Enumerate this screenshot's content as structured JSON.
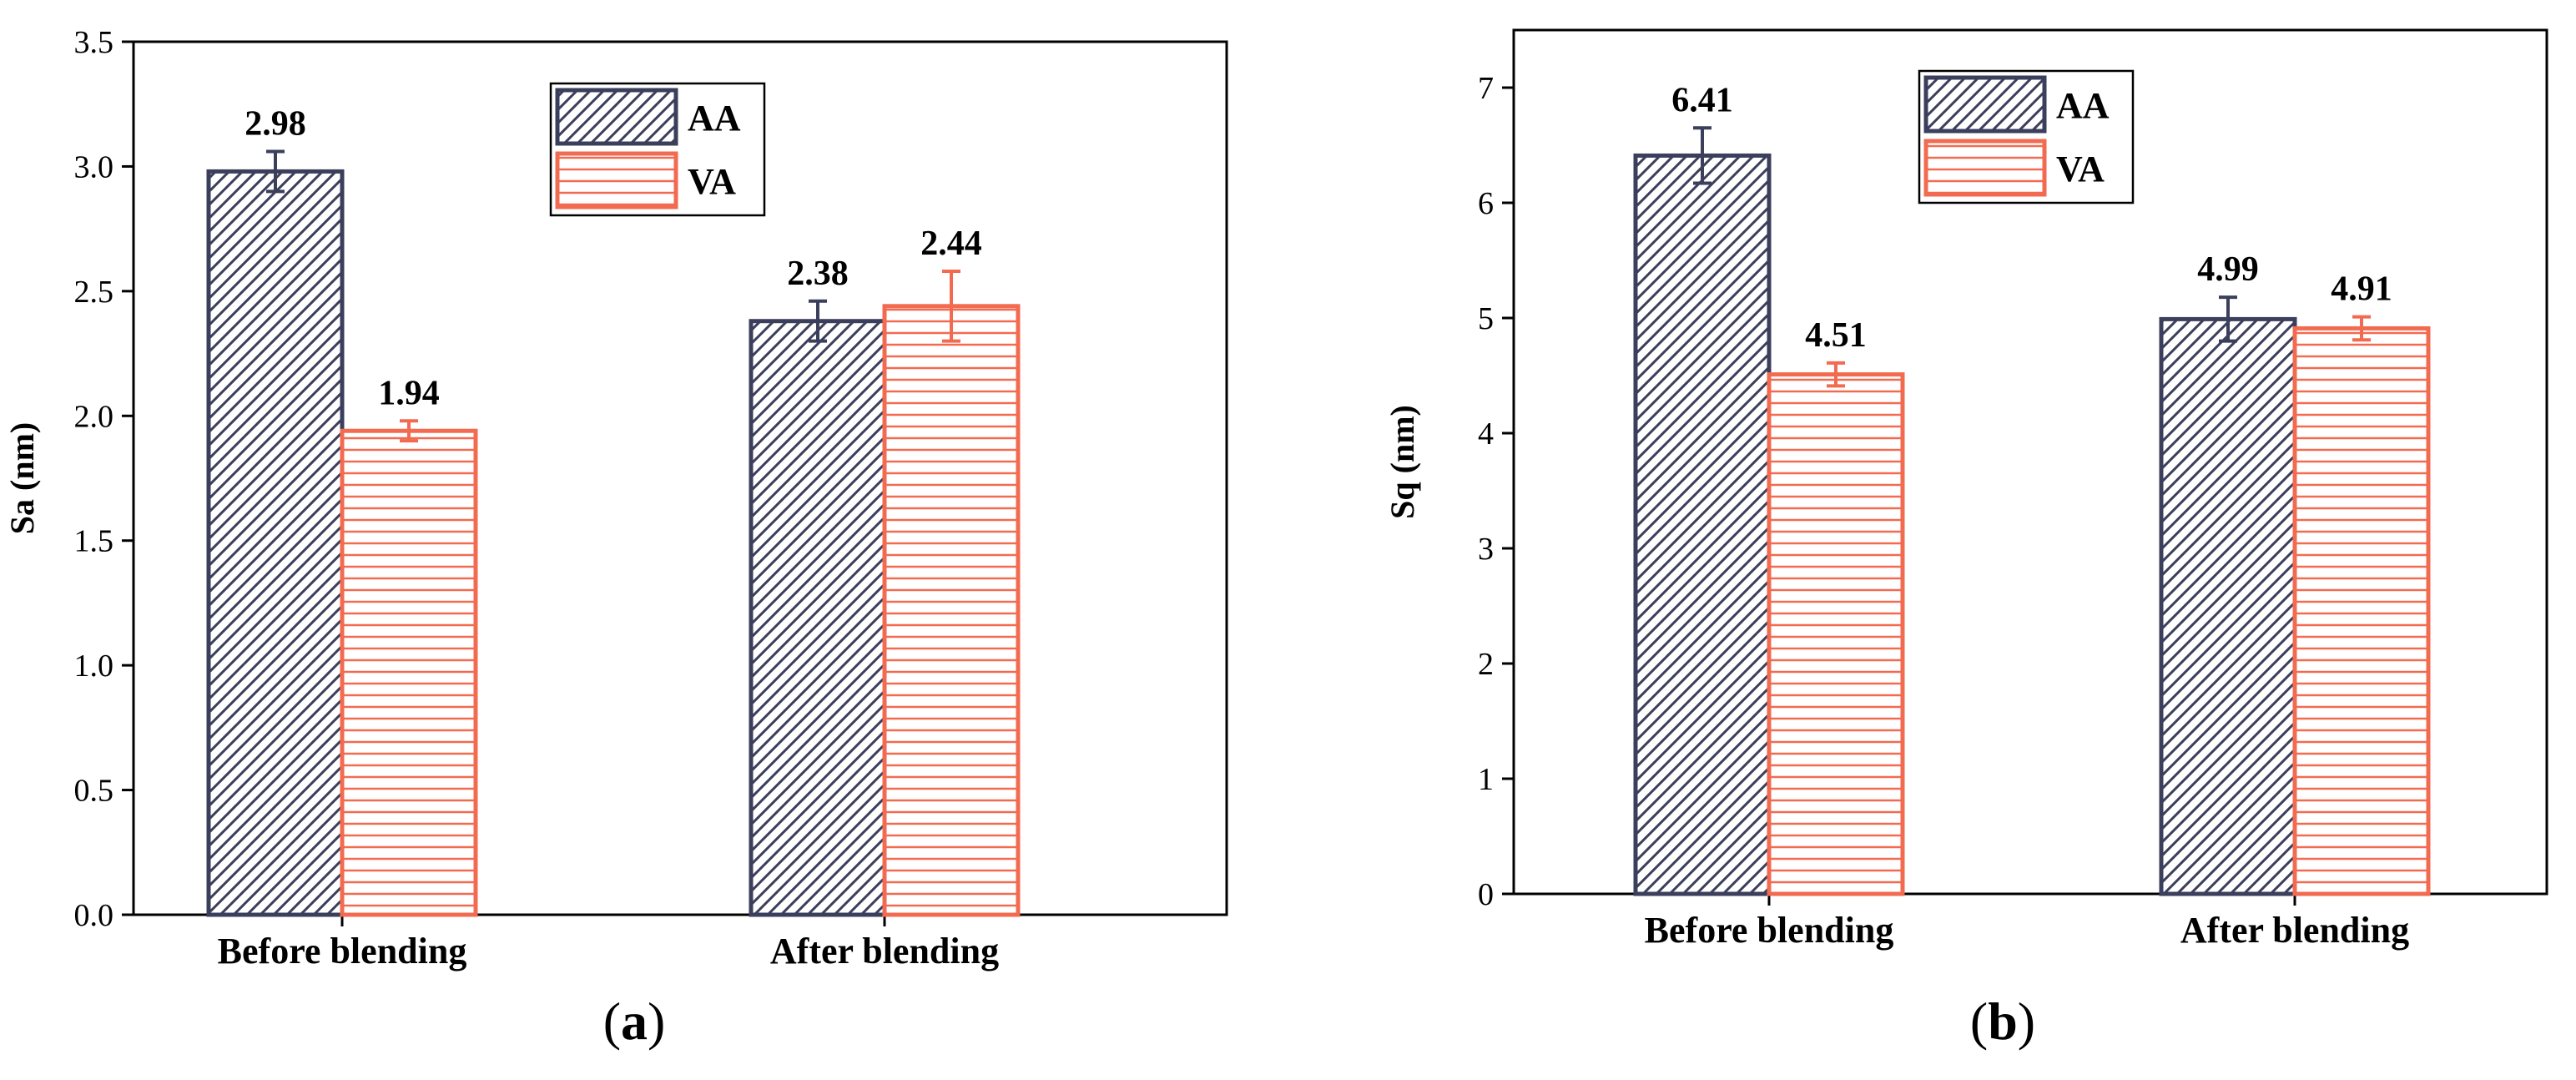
{
  "colors": {
    "AA": "#3b3f5c",
    "VA": "#f26b50"
  },
  "chart_data": [
    {
      "type": "bar",
      "panel_label": "a",
      "categories": [
        "Before blending",
        "After blending"
      ],
      "ylabel": "Sa (nm)",
      "xlabel": "",
      "ylim": [
        0,
        3.5
      ],
      "yticks": [
        0.0,
        0.5,
        1.0,
        1.5,
        2.0,
        2.5,
        3.0,
        3.5
      ],
      "tick_decimals": 1,
      "legend_position": "top-center",
      "series": [
        {
          "name": "AA",
          "values": [
            2.98,
            2.38
          ],
          "errors": [
            0.08,
            0.08
          ],
          "labels": [
            "2.98",
            "2.38"
          ]
        },
        {
          "name": "VA",
          "values": [
            1.94,
            2.44
          ],
          "errors": [
            0.04,
            0.14
          ],
          "labels": [
            "1.94",
            "2.44"
          ]
        }
      ]
    },
    {
      "type": "bar",
      "panel_label": "b",
      "categories": [
        "Before blending",
        "After blending"
      ],
      "ylabel": "Sq (nm)",
      "xlabel": "",
      "ylim": [
        0,
        7.5
      ],
      "yticks": [
        0,
        1,
        2,
        3,
        4,
        5,
        6,
        7
      ],
      "tick_decimals": 0,
      "legend_position": "top-center",
      "series": [
        {
          "name": "AA",
          "values": [
            6.41,
            4.99
          ],
          "errors": [
            0.24,
            0.19
          ],
          "labels": [
            "6.41",
            "4.99"
          ]
        },
        {
          "name": "VA",
          "values": [
            4.51,
            4.91
          ],
          "errors": [
            0.1,
            0.1
          ],
          "labels": [
            "4.51",
            "4.91"
          ]
        }
      ]
    }
  ]
}
